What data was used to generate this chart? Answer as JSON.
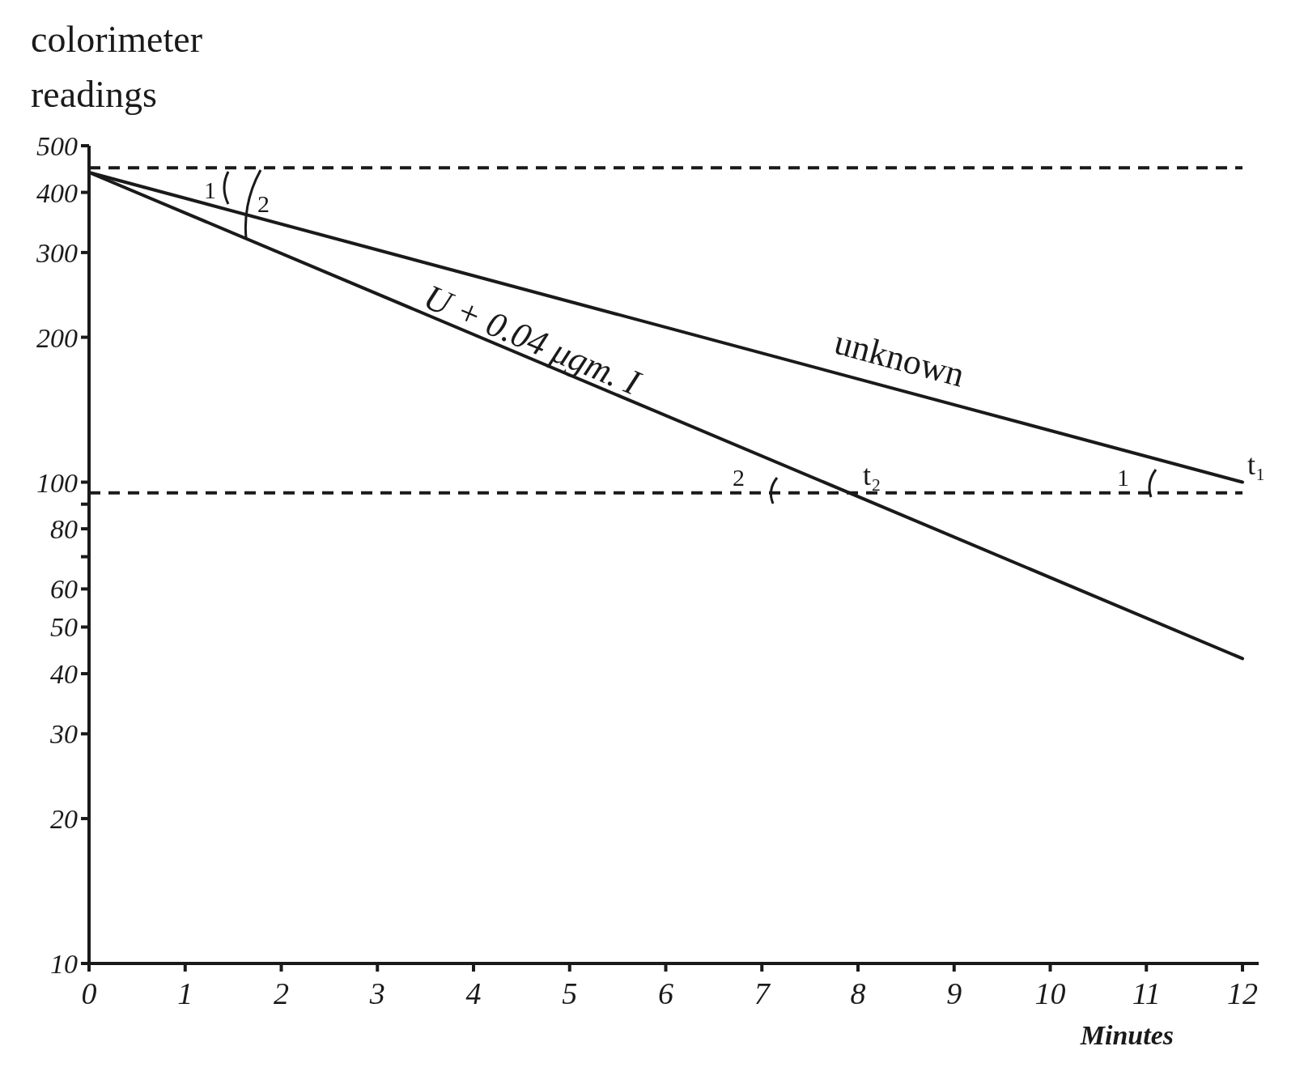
{
  "chart_data": {
    "type": "line",
    "ylabel": "colorimeter readings",
    "xlabel": "Minutes",
    "log": true,
    "xlim": [
      0,
      12
    ],
    "x": [
      0,
      12
    ],
    "xticks": [
      0,
      1,
      2,
      3,
      4,
      5,
      6,
      7,
      8,
      9,
      10,
      11,
      12
    ],
    "ylim": [
      10,
      500
    ],
    "yticks": [
      10,
      20,
      30,
      40,
      50,
      60,
      {
        "value": 70,
        "label": null
      },
      80,
      {
        "value": 90,
        "label": null
      },
      100,
      200,
      300,
      400,
      500
    ],
    "line_style": "solid",
    "marker": "none",
    "series": [
      {
        "name": "unknown",
        "color": "#1a1a1a",
        "values": [
          440,
          100
        ]
      },
      {
        "name": "U + 0.04 μgm. I",
        "color": "#1a1a1a",
        "values": [
          440,
          43
        ]
      }
    ],
    "ref_lines": [
      {
        "axis": "y",
        "value": 450,
        "line_style": "dashed",
        "color": "#1a1a1a"
      },
      {
        "axis": "y",
        "value": 95,
        "line_style": "dashed",
        "color": "#1a1a1a"
      }
    ],
    "annotations": [
      {
        "text": "t₁",
        "x": 12,
        "y": 100
      },
      {
        "text": "t₂",
        "x": 8,
        "y": 95
      },
      "1",
      "2",
      "2",
      "1"
    ]
  }
}
